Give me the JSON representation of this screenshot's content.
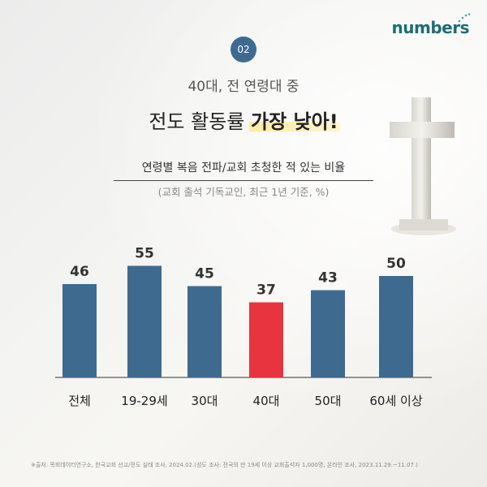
{
  "brand": {
    "logo_text": "numbers",
    "accent_color": "#1d6e72"
  },
  "header": {
    "badge": "02",
    "subtitle": "40대, 전 연령대 중",
    "title_pre": "전도 활동률 ",
    "title_highlight": "가장 낮아!"
  },
  "chart_data": {
    "type": "bar",
    "title": "연령별 복음 전파/교회 초청한 적 있는 비율",
    "note": "(교회 출석 기독교인, 최근 1년 기준, %)",
    "categories": [
      "전체",
      "19-29세",
      "30대",
      "40대",
      "50대",
      "60세 이상"
    ],
    "values": [
      46,
      55,
      45,
      37,
      43,
      50
    ],
    "highlight_index": 3,
    "colors": {
      "default": "#3e6a8f",
      "highlight": "#e8343f"
    },
    "ylim": [
      0,
      60
    ]
  },
  "footer": {
    "source": "※출처: 목회데이터연구소, 한국교회 선교/전도 실태 조사, 2024.02.(성도 조사: 전국의 만 19세 이상 교회출석자 1,000명, 온라인 조사, 2023.11.29.~11.07.)"
  }
}
